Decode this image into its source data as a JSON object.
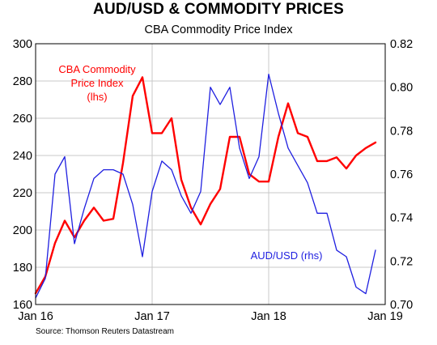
{
  "title": "AUD/USD & COMMODITY PRICES",
  "subtitle": "CBA Commodity Price Index",
  "source": "Source: Thomson Reuters Datastream",
  "colors": {
    "commodity": "#ff0000",
    "audusd": "#1f1fe0",
    "grid": "#c8c8c8"
  },
  "chart_data": {
    "type": "line",
    "title": "AUD/USD & COMMODITY PRICES",
    "subtitle": "CBA Commodity Price Index",
    "grid": true,
    "x_ticks": [
      "Jan 16",
      "Jan 17",
      "Jan 18",
      "Jan 19"
    ],
    "xlim": [
      "2016-01",
      "2019-01"
    ],
    "y_left": {
      "lim": [
        160,
        300
      ],
      "ticks": [
        160,
        180,
        200,
        220,
        240,
        260,
        280,
        300
      ],
      "tick_labels": [
        "160",
        "180",
        "200",
        "220",
        "240",
        "260",
        "280",
        "300"
      ]
    },
    "y_right": {
      "lim": [
        0.7,
        0.82
      ],
      "ticks": [
        0.7,
        0.72,
        0.74,
        0.76,
        0.78,
        0.8,
        0.82
      ],
      "tick_labels": [
        "0.70",
        "0.72",
        "0.74",
        "0.76",
        "0.78",
        "0.80",
        "0.82"
      ]
    },
    "annotations": {
      "commodity": [
        "CBA Commodity",
        "Price Index",
        "(lhs)"
      ],
      "audusd": [
        "AUD/USD (rhs)"
      ]
    },
    "series": [
      {
        "name": "CBA Commodity Price Index",
        "axis": "left",
        "color": "#ff0000",
        "x": [
          "2016-01",
          "2016-02",
          "2016-03",
          "2016-04",
          "2016-05",
          "2016-06",
          "2016-07",
          "2016-08",
          "2016-09",
          "2016-10",
          "2016-11",
          "2016-12",
          "2017-01",
          "2017-02",
          "2017-03",
          "2017-04",
          "2017-05",
          "2017-06",
          "2017-07",
          "2017-08",
          "2017-09",
          "2017-10",
          "2017-11",
          "2017-12",
          "2018-01",
          "2018-02",
          "2018-03",
          "2018-04",
          "2018-05",
          "2018-06",
          "2018-07",
          "2018-08",
          "2018-09",
          "2018-10",
          "2018-11",
          "2018-12"
        ],
        "values": [
          166,
          175,
          193,
          205,
          196,
          205,
          212,
          205,
          206,
          236,
          272,
          282,
          252,
          252,
          260,
          227,
          212,
          203,
          214,
          222,
          250,
          250,
          230,
          226,
          226,
          250,
          268,
          252,
          250,
          237,
          237,
          239,
          233,
          240,
          244,
          247
        ]
      },
      {
        "name": "AUD/USD",
        "axis": "right",
        "color": "#1f1fe0",
        "x": [
          "2016-01",
          "2016-02",
          "2016-03",
          "2016-04",
          "2016-05",
          "2016-06",
          "2016-07",
          "2016-08",
          "2016-09",
          "2016-10",
          "2016-11",
          "2016-12",
          "2017-01",
          "2017-02",
          "2017-03",
          "2017-04",
          "2017-05",
          "2017-06",
          "2017-07",
          "2017-08",
          "2017-09",
          "2017-10",
          "2017-11",
          "2017-12",
          "2018-01",
          "2018-02",
          "2018-03",
          "2018-04",
          "2018-05",
          "2018-06",
          "2018-07",
          "2018-08",
          "2018-09",
          "2018-10",
          "2018-11",
          "2018-12"
        ],
        "values": [
          0.703,
          0.712,
          0.76,
          0.768,
          0.728,
          0.744,
          0.758,
          0.762,
          0.762,
          0.76,
          0.746,
          0.722,
          0.752,
          0.766,
          0.762,
          0.75,
          0.742,
          0.752,
          0.8,
          0.792,
          0.8,
          0.772,
          0.758,
          0.768,
          0.806,
          0.788,
          0.772,
          0.764,
          0.756,
          0.742,
          0.742,
          0.725,
          0.722,
          0.708,
          0.705,
          0.725
        ]
      }
    ]
  }
}
